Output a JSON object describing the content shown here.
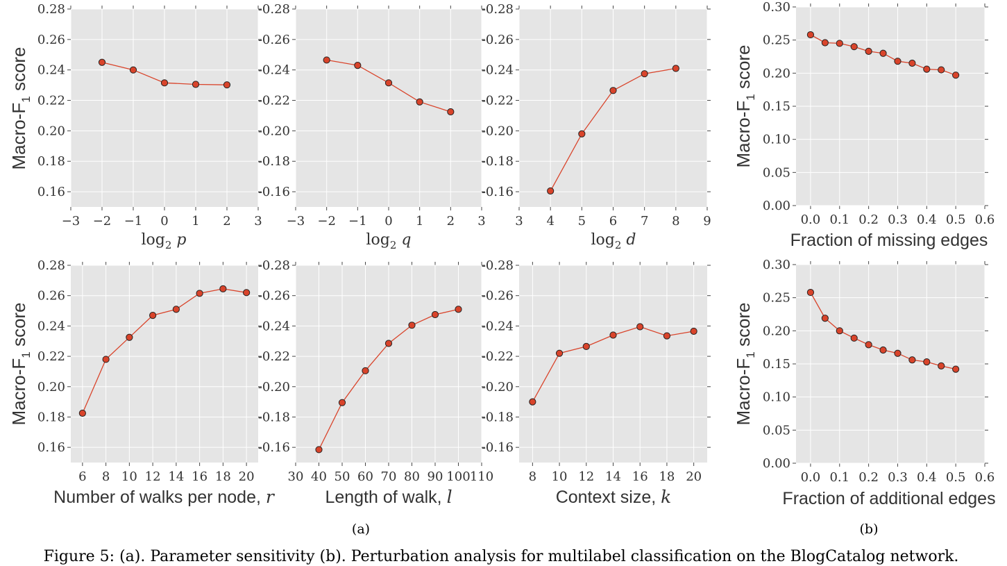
{
  "caption": "Figure 5: (a). Parameter sensitivity (b). Perturbation analysis for multilabel classification on the BlogCatalog network.",
  "sub_labels": {
    "a": "(a)",
    "b": "(b)"
  },
  "style": {
    "panel_bg": "#e5e5e5",
    "line_color": "#d9442b",
    "marker_edge": "#222222",
    "grid": "#ffffff"
  },
  "chart_data": [
    {
      "id": "log2p",
      "type": "line",
      "xlabel": "log2 p",
      "xlabel_parts": [
        "log",
        "2",
        "p"
      ],
      "ylabel": "Macro-F1 score",
      "ylabel_parts": [
        "Macro-F",
        "1",
        " score"
      ],
      "xlim": [
        -3,
        3
      ],
      "ylim": [
        0.15,
        0.28
      ],
      "xticks": [
        -3,
        -2,
        -1,
        0,
        1,
        2,
        3
      ],
      "xtick_labels": [
        "−3",
        "−2",
        "−1",
        "0",
        "1",
        "2",
        "3"
      ],
      "yticks": [
        0.16,
        0.18,
        0.2,
        0.22,
        0.24,
        0.26,
        0.28
      ],
      "ytick_labels": [
        "0.16",
        "0.18",
        "0.20",
        "0.22",
        "0.24",
        "0.26",
        "0.28"
      ],
      "grid": true,
      "x": [
        -2,
        -1,
        0,
        1,
        2
      ],
      "y": [
        0.245,
        0.24,
        0.2315,
        0.2305,
        0.2302
      ]
    },
    {
      "id": "log2q",
      "type": "line",
      "xlabel": "log2 q",
      "xlabel_parts": [
        "log",
        "2",
        "q"
      ],
      "ylabel": "",
      "ylabel_parts": null,
      "xlim": [
        -3,
        3
      ],
      "ylim": [
        0.15,
        0.28
      ],
      "xticks": [
        -3,
        -2,
        -1,
        0,
        1,
        2,
        3
      ],
      "xtick_labels": [
        "−3",
        "−2",
        "−1",
        "0",
        "1",
        "2",
        "3"
      ],
      "yticks": [
        0.16,
        0.18,
        0.2,
        0.22,
        0.24,
        0.26,
        0.28
      ],
      "ytick_labels": [
        "-0.16",
        "-0.18",
        "-0.20",
        "-0.22",
        "-0.24",
        "-0.26",
        "-0.28"
      ],
      "grid": true,
      "x": [
        -2,
        -1,
        0,
        1,
        2
      ],
      "y": [
        0.2465,
        0.243,
        0.2315,
        0.219,
        0.2125
      ]
    },
    {
      "id": "log2d",
      "type": "line",
      "xlabel": "log2 d",
      "xlabel_parts": [
        "log",
        "2",
        "d"
      ],
      "ylabel": "",
      "ylabel_parts": null,
      "xlim": [
        3,
        9
      ],
      "ylim": [
        0.15,
        0.28
      ],
      "xticks": [
        3,
        4,
        5,
        6,
        7,
        8,
        9
      ],
      "xtick_labels": [
        "3",
        "4",
        "5",
        "6",
        "7",
        "8",
        "9"
      ],
      "yticks": [
        0.16,
        0.18,
        0.2,
        0.22,
        0.24,
        0.26,
        0.28
      ],
      "ytick_labels": [
        "-0.16",
        "-0.18",
        "-0.20",
        "-0.22",
        "-0.24",
        "-0.26",
        "-0.28"
      ],
      "grid": true,
      "x": [
        4,
        5,
        6,
        7,
        8
      ],
      "y": [
        0.1605,
        0.198,
        0.2265,
        0.2375,
        0.241
      ]
    },
    {
      "id": "missing",
      "type": "line",
      "xlabel": "Fraction of missing edges",
      "xlabel_parts": null,
      "ylabel": "Macro-F1 score",
      "ylabel_parts": [
        "Macro-F",
        "1",
        " score"
      ],
      "xlim": [
        -0.05,
        0.6
      ],
      "ylim": [
        0.0,
        0.3
      ],
      "xticks": [
        0.0,
        0.1,
        0.2,
        0.3,
        0.4,
        0.5,
        0.6
      ],
      "xtick_labels": [
        "0.0",
        "0.1",
        "0.2",
        "0.3",
        "0.4",
        "0.5",
        "0.6"
      ],
      "yticks": [
        0.0,
        0.05,
        0.1,
        0.15,
        0.2,
        0.25,
        0.3
      ],
      "ytick_labels": [
        "0.00",
        "0.05",
        "0.10",
        "0.15",
        "0.20",
        "0.25",
        "0.30"
      ],
      "grid": true,
      "x": [
        0.0,
        0.05,
        0.1,
        0.15,
        0.2,
        0.25,
        0.3,
        0.35,
        0.4,
        0.45,
        0.5
      ],
      "y": [
        0.258,
        0.246,
        0.245,
        0.24,
        0.233,
        0.23,
        0.218,
        0.215,
        0.206,
        0.205,
        0.197
      ]
    },
    {
      "id": "walks",
      "type": "line",
      "xlabel": "Number of walks per node, r",
      "xlabel_parts": [
        "Number of walks per node, ",
        "",
        "r"
      ],
      "ylabel": "Macro-F1 score",
      "ylabel_parts": [
        "Macro-F",
        "1",
        " score"
      ],
      "xlim": [
        5,
        21
      ],
      "ylim": [
        0.15,
        0.28
      ],
      "xticks": [
        6,
        8,
        10,
        12,
        14,
        16,
        18,
        20
      ],
      "xtick_labels": [
        "6",
        "8",
        "10",
        "12",
        "14",
        "16",
        "18",
        "20"
      ],
      "yticks": [
        0.16,
        0.18,
        0.2,
        0.22,
        0.24,
        0.26,
        0.28
      ],
      "ytick_labels": [
        "0.16",
        "0.18",
        "0.20",
        "0.22",
        "0.24",
        "0.26",
        "0.28"
      ],
      "grid": true,
      "x": [
        6,
        8,
        10,
        12,
        14,
        16,
        18,
        20
      ],
      "y": [
        0.1825,
        0.218,
        0.2325,
        0.247,
        0.251,
        0.2615,
        0.2645,
        0.262
      ]
    },
    {
      "id": "length",
      "type": "line",
      "xlabel": "Length of walk, l",
      "xlabel_parts": [
        "Length of walk, ",
        "",
        "l"
      ],
      "ylabel": "",
      "ylabel_parts": null,
      "xlim": [
        30,
        110
      ],
      "ylim": [
        0.15,
        0.28
      ],
      "xticks": [
        30,
        40,
        50,
        60,
        70,
        80,
        90,
        100,
        110
      ],
      "xtick_labels": [
        "30",
        "40",
        "50",
        "60",
        "70",
        "80",
        "90",
        "100",
        "110"
      ],
      "yticks": [
        0.16,
        0.18,
        0.2,
        0.22,
        0.24,
        0.26,
        0.28
      ],
      "ytick_labels": [
        "-0.16",
        "-0.18",
        "-0.20",
        "-0.22",
        "-0.24",
        "-0.26",
        "-0.28"
      ],
      "grid": true,
      "x": [
        40,
        50,
        60,
        70,
        80,
        90,
        100
      ],
      "y": [
        0.1585,
        0.1895,
        0.2105,
        0.2285,
        0.2405,
        0.2475,
        0.251
      ]
    },
    {
      "id": "context",
      "type": "line",
      "xlabel": "Context size, k",
      "xlabel_parts": [
        "Context size, ",
        "",
        "k"
      ],
      "ylabel": "",
      "ylabel_parts": null,
      "xlim": [
        7,
        21
      ],
      "ylim": [
        0.15,
        0.28
      ],
      "xticks": [
        8,
        10,
        12,
        14,
        16,
        18,
        20
      ],
      "xtick_labels": [
        "8",
        "10",
        "12",
        "14",
        "16",
        "18",
        "20"
      ],
      "yticks": [
        0.16,
        0.18,
        0.2,
        0.22,
        0.24,
        0.26,
        0.28
      ],
      "ytick_labels": [
        "-0.16",
        "-0.18",
        "-0.20",
        "-0.22",
        "-0.24",
        "-0.26",
        "-0.28"
      ],
      "grid": true,
      "x": [
        8,
        10,
        12,
        14,
        16,
        18,
        20
      ],
      "y": [
        0.19,
        0.222,
        0.2265,
        0.234,
        0.2395,
        0.2335,
        0.2365
      ]
    },
    {
      "id": "additional",
      "type": "line",
      "xlabel": "Fraction of additional edges",
      "xlabel_parts": null,
      "ylabel": "Macro-F1 score",
      "ylabel_parts": [
        "Macro-F",
        "1",
        " score"
      ],
      "xlim": [
        -0.05,
        0.6
      ],
      "ylim": [
        0.0,
        0.3
      ],
      "xticks": [
        0.0,
        0.1,
        0.2,
        0.3,
        0.4,
        0.5,
        0.6
      ],
      "xtick_labels": [
        "0.0",
        "0.1",
        "0.2",
        "0.3",
        "0.4",
        "0.5",
        "0.6"
      ],
      "yticks": [
        0.0,
        0.05,
        0.1,
        0.15,
        0.2,
        0.25,
        0.3
      ],
      "ytick_labels": [
        "0.00",
        "0.05",
        "0.10",
        "0.15",
        "0.20",
        "0.25",
        "0.30"
      ],
      "grid": true,
      "x": [
        0.0,
        0.05,
        0.1,
        0.15,
        0.2,
        0.25,
        0.3,
        0.35,
        0.4,
        0.45,
        0.5
      ],
      "y": [
        0.258,
        0.219,
        0.2,
        0.189,
        0.179,
        0.171,
        0.166,
        0.156,
        0.153,
        0.147,
        0.142
      ]
    }
  ]
}
